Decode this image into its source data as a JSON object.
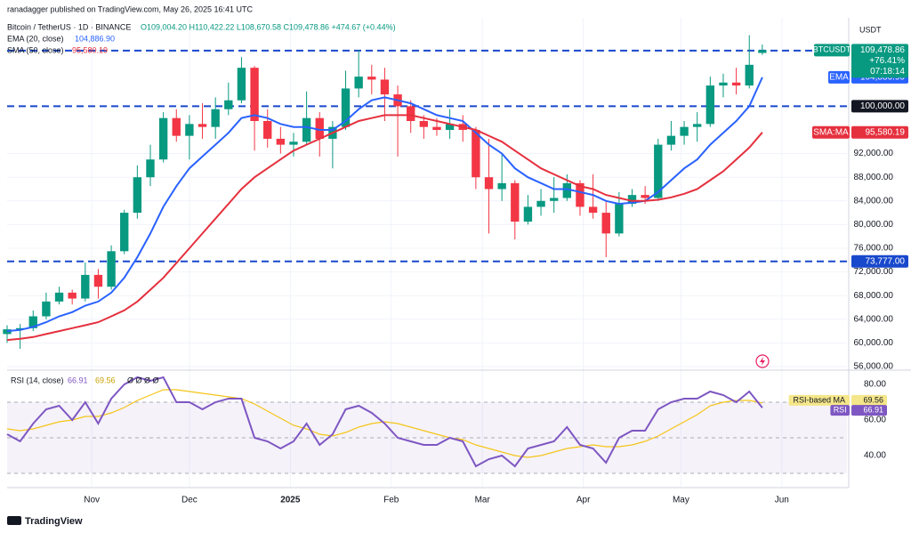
{
  "header": {
    "publisher": "ranadagger published on TradingView.com, May 26, 2025 16:41 UTC",
    "symbol": "Bitcoin / TetherUS · 1D · BINANCE",
    "ohlc": "O109,004.20 H110,422.22 L108,670.58 C109,478.86 +474.67 (+0.44%)",
    "currency": "USDT",
    "footer": "TradingView"
  },
  "chart_data": [
    {
      "type": "candlestick",
      "categories": [
        null,
        null,
        null,
        null,
        null,
        null,
        null,
        null,
        null,
        null,
        null,
        null,
        null,
        null,
        null,
        null,
        null,
        null,
        null,
        null,
        null,
        null,
        null,
        null,
        null,
        null,
        null,
        null,
        null,
        null,
        null,
        null,
        null,
        null,
        null,
        null,
        null,
        null,
        null,
        null,
        null,
        null,
        null,
        null,
        null,
        null,
        null,
        null,
        null,
        null,
        null,
        null,
        null,
        null,
        null,
        null,
        null,
        null,
        null
      ],
      "xlim": [
        0,
        64.5
      ],
      "xticks": [
        {
          "value": 6.5,
          "label": "Nov"
        },
        {
          "value": 14,
          "label": "Dec"
        },
        {
          "value": 21.75,
          "label": "2025"
        },
        {
          "value": 29.5,
          "label": "Feb"
        },
        {
          "value": 36.5,
          "label": "Mar"
        },
        {
          "value": 44.25,
          "label": "Apr"
        },
        {
          "value": 51.75,
          "label": "May"
        },
        {
          "value": 59.5,
          "label": "Jun"
        }
      ],
      "ylim": [
        55550,
        113440
      ],
      "yticks": [
        {
          "value": 56000,
          "label": "56,000.00"
        },
        {
          "value": 60000,
          "label": "60,000.00"
        },
        {
          "value": 64000,
          "label": "64,000.00"
        },
        {
          "value": 68000,
          "label": "68,000.00"
        },
        {
          "value": 72000,
          "label": "72,000.00"
        },
        {
          "value": 76000,
          "label": "76,000.00"
        },
        {
          "value": 80000,
          "label": "80,000.00"
        },
        {
          "value": 84000,
          "label": "84,000.00"
        },
        {
          "value": 88000,
          "label": "88,000.00"
        },
        {
          "value": 92000,
          "label": "92,000.00"
        }
      ],
      "levels": [
        {
          "value": 109400
        },
        {
          "value": 100000,
          "label": "100,000.00",
          "color": "#131722"
        },
        {
          "value": 73777,
          "label": "73,777.00",
          "color": "#1848cc"
        }
      ],
      "series": [
        {
          "name": "BTCUSDT",
          "up_color": "#089981",
          "down_color": "#f23645",
          "price_label": "109,478.86",
          "change_label": "+76.41%",
          "countdown": "07:18:14",
          "open": [
            61500,
            62300,
            62500,
            64500,
            67000,
            68500,
            67500,
            71500,
            69500,
            75500,
            82000,
            88000,
            91000,
            98000,
            95000,
            97000,
            96500,
            99500,
            101000,
            106500,
            97500,
            94500,
            93500,
            94000,
            98000,
            94500,
            96500,
            103000,
            105000,
            104500,
            102000,
            100000,
            97500,
            96500,
            96000,
            97000,
            96000,
            88000,
            86000,
            87000,
            80500,
            83000,
            84000,
            84500,
            87000,
            83000,
            82000,
            78500,
            83500,
            85000,
            84500,
            93500,
            95000,
            96500,
            97000,
            103500,
            104000,
            103500,
            109004.2
          ],
          "high": [
            63000,
            63200,
            65500,
            68500,
            69500,
            69000,
            73600,
            72500,
            76500,
            82500,
            90000,
            93500,
            99000,
            99500,
            98500,
            100500,
            101500,
            104000,
            108300,
            106800,
            99500,
            96500,
            95500,
            102500,
            99000,
            97500,
            106000,
            109500,
            107000,
            106500,
            103500,
            101000,
            98500,
            98000,
            99500,
            98500,
            96500,
            94500,
            92000,
            87500,
            85000,
            86000,
            88000,
            88500,
            87500,
            88500,
            84000,
            85500,
            86000,
            86500,
            94500,
            97500,
            97500,
            99000,
            105000,
            105500,
            106500,
            112000,
            110422.22
          ],
          "low": [
            60000,
            59000,
            62000,
            64000,
            66500,
            66500,
            67000,
            67500,
            69000,
            75000,
            81000,
            86500,
            90500,
            94000,
            91000,
            94500,
            94500,
            98500,
            100500,
            92500,
            93000,
            92000,
            91500,
            93500,
            91500,
            89500,
            96000,
            101500,
            102000,
            97500,
            91500,
            95500,
            94500,
            95000,
            94500,
            94000,
            86000,
            78500,
            84000,
            77500,
            80000,
            81500,
            82000,
            84000,
            81500,
            81000,
            74500,
            78000,
            83000,
            83500,
            84000,
            92500,
            93500,
            94000,
            96500,
            101500,
            102000,
            103000,
            108670.58
          ],
          "close": [
            62300,
            62500,
            64500,
            67000,
            68500,
            67500,
            71500,
            69500,
            75500,
            82000,
            88000,
            91000,
            98000,
            95000,
            97000,
            96500,
            99500,
            101000,
            106500,
            97500,
            94500,
            93500,
            94000,
            98000,
            94500,
            96500,
            103000,
            105000,
            104500,
            102000,
            100000,
            97500,
            96500,
            96000,
            97000,
            96000,
            88000,
            86000,
            87000,
            80500,
            83000,
            84000,
            84500,
            87000,
            83000,
            82000,
            78500,
            83500,
            85000,
            84500,
            93500,
            95000,
            96500,
            97000,
            103500,
            104000,
            103500,
            107000,
            109478.86
          ]
        },
        {
          "name": "EMA",
          "legend": "EMA (20, close)",
          "value_label": "104,886.90",
          "color": "#2962ff",
          "values": [
            62000,
            62200,
            62700,
            63500,
            64500,
            65200,
            66300,
            67000,
            68500,
            71000,
            74500,
            78500,
            83000,
            86500,
            89500,
            91500,
            93500,
            95500,
            98000,
            98500,
            98000,
            97000,
            96500,
            96500,
            96000,
            96000,
            97500,
            99500,
            101000,
            101500,
            101000,
            100500,
            99500,
            98500,
            98000,
            97500,
            95500,
            93500,
            92000,
            89500,
            88000,
            87000,
            86000,
            86000,
            85500,
            85000,
            84000,
            83500,
            83700,
            84000,
            85500,
            87500,
            89500,
            91000,
            93500,
            95500,
            97500,
            100000,
            104886.9
          ]
        },
        {
          "name": "SMA:MA",
          "legend": "SMA (50, close)",
          "value_label": "95,580.19",
          "color": "#e5303e",
          "values": [
            60500,
            60700,
            61000,
            61500,
            62000,
            62500,
            63000,
            63500,
            64500,
            65500,
            67000,
            69000,
            71000,
            73500,
            76000,
            78500,
            81000,
            83500,
            86000,
            88000,
            89500,
            91000,
            92500,
            93500,
            94500,
            95500,
            96500,
            97500,
            98000,
            98500,
            98500,
            98500,
            98000,
            97500,
            97000,
            96500,
            96000,
            95000,
            94000,
            92500,
            91000,
            89500,
            88500,
            87500,
            86500,
            86000,
            85000,
            84500,
            84000,
            84000,
            84200,
            84600,
            85200,
            86000,
            87500,
            89000,
            91000,
            93000,
            95580.19
          ]
        }
      ]
    },
    {
      "type": "line",
      "legend": "RSI (14, close)",
      "markers": "Ø Ø Ø Ø",
      "ylim": [
        23.5,
        87
      ],
      "yticks": [
        {
          "value": 40,
          "label": "40.00"
        },
        {
          "value": 60,
          "label": "60.00"
        },
        {
          "value": 80,
          "label": "80.00"
        }
      ],
      "levels": [
        70,
        50,
        30
      ],
      "series": [
        {
          "name": "RSI",
          "value_label": "66.91",
          "color": "#7e57c2",
          "values": [
            52,
            48,
            58,
            66,
            68,
            60,
            70,
            58,
            72,
            80,
            84,
            82,
            84,
            70,
            70,
            66,
            70,
            72,
            72,
            50,
            48,
            44,
            48,
            58,
            46,
            52,
            66,
            68,
            64,
            58,
            50,
            48,
            46,
            46,
            50,
            48,
            34,
            38,
            40,
            34,
            44,
            46,
            48,
            56,
            46,
            44,
            36,
            50,
            54,
            54,
            66,
            70,
            72,
            72,
            76,
            74,
            70,
            76,
            66.91
          ]
        },
        {
          "name": "RSI-based MA",
          "value_label": "69.56",
          "color": "#f5c518",
          "values": [
            55,
            54,
            55,
            57,
            59,
            60,
            62,
            62,
            64,
            67,
            71,
            74,
            77,
            77,
            76,
            75,
            74,
            73,
            72,
            69,
            65,
            61,
            57,
            55,
            52,
            51,
            53,
            56,
            58,
            59,
            58,
            56,
            54,
            52,
            50,
            49,
            46,
            44,
            42,
            40,
            39,
            40,
            42,
            44,
            45,
            46,
            45,
            45,
            46,
            48,
            51,
            55,
            59,
            63,
            68,
            70,
            71,
            71,
            69.56
          ]
        }
      ]
    }
  ]
}
